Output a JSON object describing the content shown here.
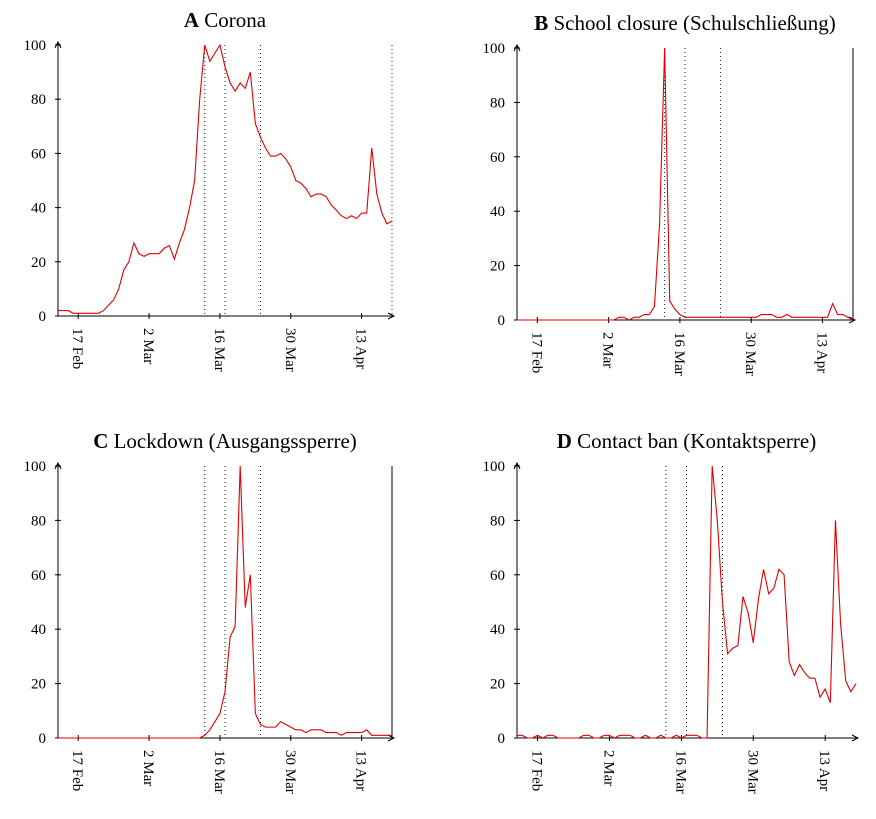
{
  "chart_data": [
    {
      "type": "line",
      "label": "A",
      "title": "Corona",
      "color": "#e00000",
      "x": [
        44,
        45,
        46,
        47,
        48,
        49,
        50,
        51,
        52,
        53,
        54,
        55,
        56,
        57,
        58,
        59,
        60,
        61,
        62,
        63,
        64,
        65,
        66,
        67,
        68,
        69,
        70,
        71,
        72,
        73,
        74,
        75,
        76,
        77,
        78,
        79,
        80,
        81,
        82,
        83,
        84,
        85,
        86,
        87,
        88,
        89,
        90,
        91,
        92,
        93,
        94,
        95,
        96,
        97,
        98,
        99,
        100,
        101,
        102,
        103,
        104,
        105,
        106,
        107,
        108,
        109,
        110
      ],
      "values": [
        2,
        2,
        2,
        1,
        1,
        1,
        1,
        1,
        1,
        2,
        4,
        6,
        10,
        17,
        20,
        27,
        23,
        22,
        23,
        23,
        23,
        25,
        26,
        21,
        27,
        32,
        40,
        50,
        80,
        100,
        94,
        97,
        100,
        92,
        86,
        83,
        86,
        84,
        90,
        71,
        66,
        62,
        59,
        59,
        60,
        58,
        55,
        50,
        49,
        47,
        44,
        45,
        45,
        44,
        41,
        39,
        37,
        36,
        37,
        36,
        38,
        38,
        62,
        45,
        38,
        34,
        35
      ],
      "xlim": [
        44,
        110
      ],
      "ylim": [
        0,
        100
      ],
      "yticks": [
        0,
        20,
        40,
        60,
        80,
        100
      ],
      "xticks": [
        {
          "value": 48,
          "label": "17 Feb"
        },
        {
          "value": 62,
          "label": "2 Mar"
        },
        {
          "value": 76,
          "label": "16 Mar"
        },
        {
          "value": 90,
          "label": "30 Mar"
        },
        {
          "value": 104,
          "label": "13 Apr"
        }
      ],
      "vlines": [
        73,
        77,
        84,
        110
      ],
      "frame_right": false
    },
    {
      "type": "line",
      "label": "B",
      "title": "School closure (Schulschließung)",
      "color": "#e00000",
      "x": [
        44,
        45,
        46,
        47,
        48,
        49,
        50,
        51,
        52,
        53,
        54,
        55,
        56,
        57,
        58,
        59,
        60,
        61,
        62,
        63,
        64,
        65,
        66,
        67,
        68,
        69,
        70,
        71,
        72,
        73,
        74,
        75,
        76,
        77,
        78,
        79,
        80,
        81,
        82,
        83,
        84,
        85,
        86,
        87,
        88,
        89,
        90,
        91,
        92,
        93,
        94,
        95,
        96,
        97,
        98,
        99,
        100,
        101,
        102,
        103,
        104,
        105,
        106,
        107,
        108,
        109,
        110
      ],
      "values": [
        0,
        0,
        0,
        0,
        0,
        0,
        0,
        0,
        0,
        0,
        0,
        0,
        0,
        0,
        0,
        0,
        0,
        0,
        0,
        0,
        1,
        1,
        0,
        1,
        1,
        2,
        2,
        5,
        35,
        100,
        7,
        4,
        2,
        1,
        1,
        1,
        1,
        1,
        1,
        1,
        1,
        1,
        1,
        1,
        1,
        1,
        1,
        1,
        2,
        2,
        2,
        1,
        1,
        2,
        1,
        1,
        1,
        1,
        1,
        1,
        1,
        1,
        6,
        2,
        2,
        1,
        0
      ],
      "xlim": [
        44,
        110
      ],
      "ylim": [
        0,
        100
      ],
      "yticks": [
        0,
        20,
        40,
        60,
        80,
        100
      ],
      "xticks": [
        {
          "value": 48,
          "label": "17 Feb"
        },
        {
          "value": 62,
          "label": "2 Mar"
        },
        {
          "value": 76,
          "label": "16 Mar"
        },
        {
          "value": 90,
          "label": "30 Mar"
        },
        {
          "value": 104,
          "label": "13 Apr"
        }
      ],
      "vlines": [
        73,
        77,
        84
      ],
      "frame_right": true
    },
    {
      "type": "line",
      "label": "C",
      "title": "Lockdown (Ausgangssperre)",
      "color": "#e00000",
      "x": [
        44,
        45,
        46,
        47,
        48,
        49,
        50,
        51,
        52,
        53,
        54,
        55,
        56,
        57,
        58,
        59,
        60,
        61,
        62,
        63,
        64,
        65,
        66,
        67,
        68,
        69,
        70,
        71,
        72,
        73,
        74,
        75,
        76,
        77,
        78,
        79,
        80,
        81,
        82,
        83,
        84,
        85,
        86,
        87,
        88,
        89,
        90,
        91,
        92,
        93,
        94,
        95,
        96,
        97,
        98,
        99,
        100,
        101,
        102,
        103,
        104,
        105,
        106,
        107,
        108,
        109,
        110
      ],
      "values": [
        0,
        0,
        0,
        0,
        0,
        0,
        0,
        0,
        0,
        0,
        0,
        0,
        0,
        0,
        0,
        0,
        0,
        0,
        0,
        0,
        0,
        0,
        0,
        0,
        0,
        0,
        0,
        0,
        0,
        1,
        3,
        6,
        9,
        17,
        37,
        41,
        100,
        48,
        60,
        9,
        5,
        4,
        4,
        4,
        6,
        5,
        4,
        3,
        3,
        2,
        3,
        3,
        3,
        2,
        2,
        2,
        1,
        2,
        2,
        2,
        2,
        3,
        1,
        1,
        1,
        1,
        1
      ],
      "xlim": [
        44,
        110
      ],
      "ylim": [
        0,
        100
      ],
      "yticks": [
        0,
        20,
        40,
        60,
        80,
        100
      ],
      "xticks": [
        {
          "value": 48,
          "label": "17 Feb"
        },
        {
          "value": 62,
          "label": "2 Mar"
        },
        {
          "value": 76,
          "label": "16 Mar"
        },
        {
          "value": 90,
          "label": "30 Mar"
        },
        {
          "value": 104,
          "label": "13 Apr"
        }
      ],
      "vlines": [
        73,
        77,
        84
      ],
      "frame_right": true
    },
    {
      "type": "line",
      "label": "D",
      "title": "Contact ban (Kontaktsperre)",
      "color": "#e00000",
      "x": [
        44,
        45,
        46,
        47,
        48,
        49,
        50,
        51,
        52,
        53,
        54,
        55,
        56,
        57,
        58,
        59,
        60,
        61,
        62,
        63,
        64,
        65,
        66,
        67,
        68,
        69,
        70,
        71,
        72,
        73,
        74,
        75,
        76,
        77,
        78,
        79,
        80,
        81,
        82,
        83,
        84,
        85,
        86,
        87,
        88,
        89,
        90,
        91,
        92,
        93,
        94,
        95,
        96,
        97,
        98,
        99,
        100,
        101,
        102,
        103,
        104,
        105,
        106,
        107,
        108,
        109,
        110
      ],
      "values": [
        1,
        1,
        0,
        0,
        1,
        0,
        1,
        1,
        0,
        0,
        0,
        0,
        0,
        1,
        1,
        0,
        0,
        1,
        1,
        0,
        1,
        1,
        1,
        0,
        0,
        1,
        0,
        0,
        1,
        0,
        0,
        1,
        0,
        1,
        1,
        1,
        0,
        0,
        100,
        80,
        50,
        31,
        33,
        34,
        52,
        46,
        35,
        51,
        62,
        53,
        55,
        62,
        60,
        28,
        23,
        27,
        24,
        22,
        22,
        15,
        18,
        13,
        80,
        42,
        21,
        17,
        20
      ],
      "xlim": [
        44,
        110
      ],
      "ylim": [
        0,
        100
      ],
      "yticks": [
        0,
        20,
        40,
        60,
        80,
        100
      ],
      "xticks": [
        {
          "value": 48,
          "label": "17 Feb"
        },
        {
          "value": 62,
          "label": "2 Mar"
        },
        {
          "value": 76,
          "label": "16 Mar"
        },
        {
          "value": 90,
          "label": "30 Mar"
        },
        {
          "value": 104,
          "label": "13 Apr"
        }
      ],
      "vlines": [
        73,
        77,
        84
      ],
      "frame_right": false
    }
  ]
}
